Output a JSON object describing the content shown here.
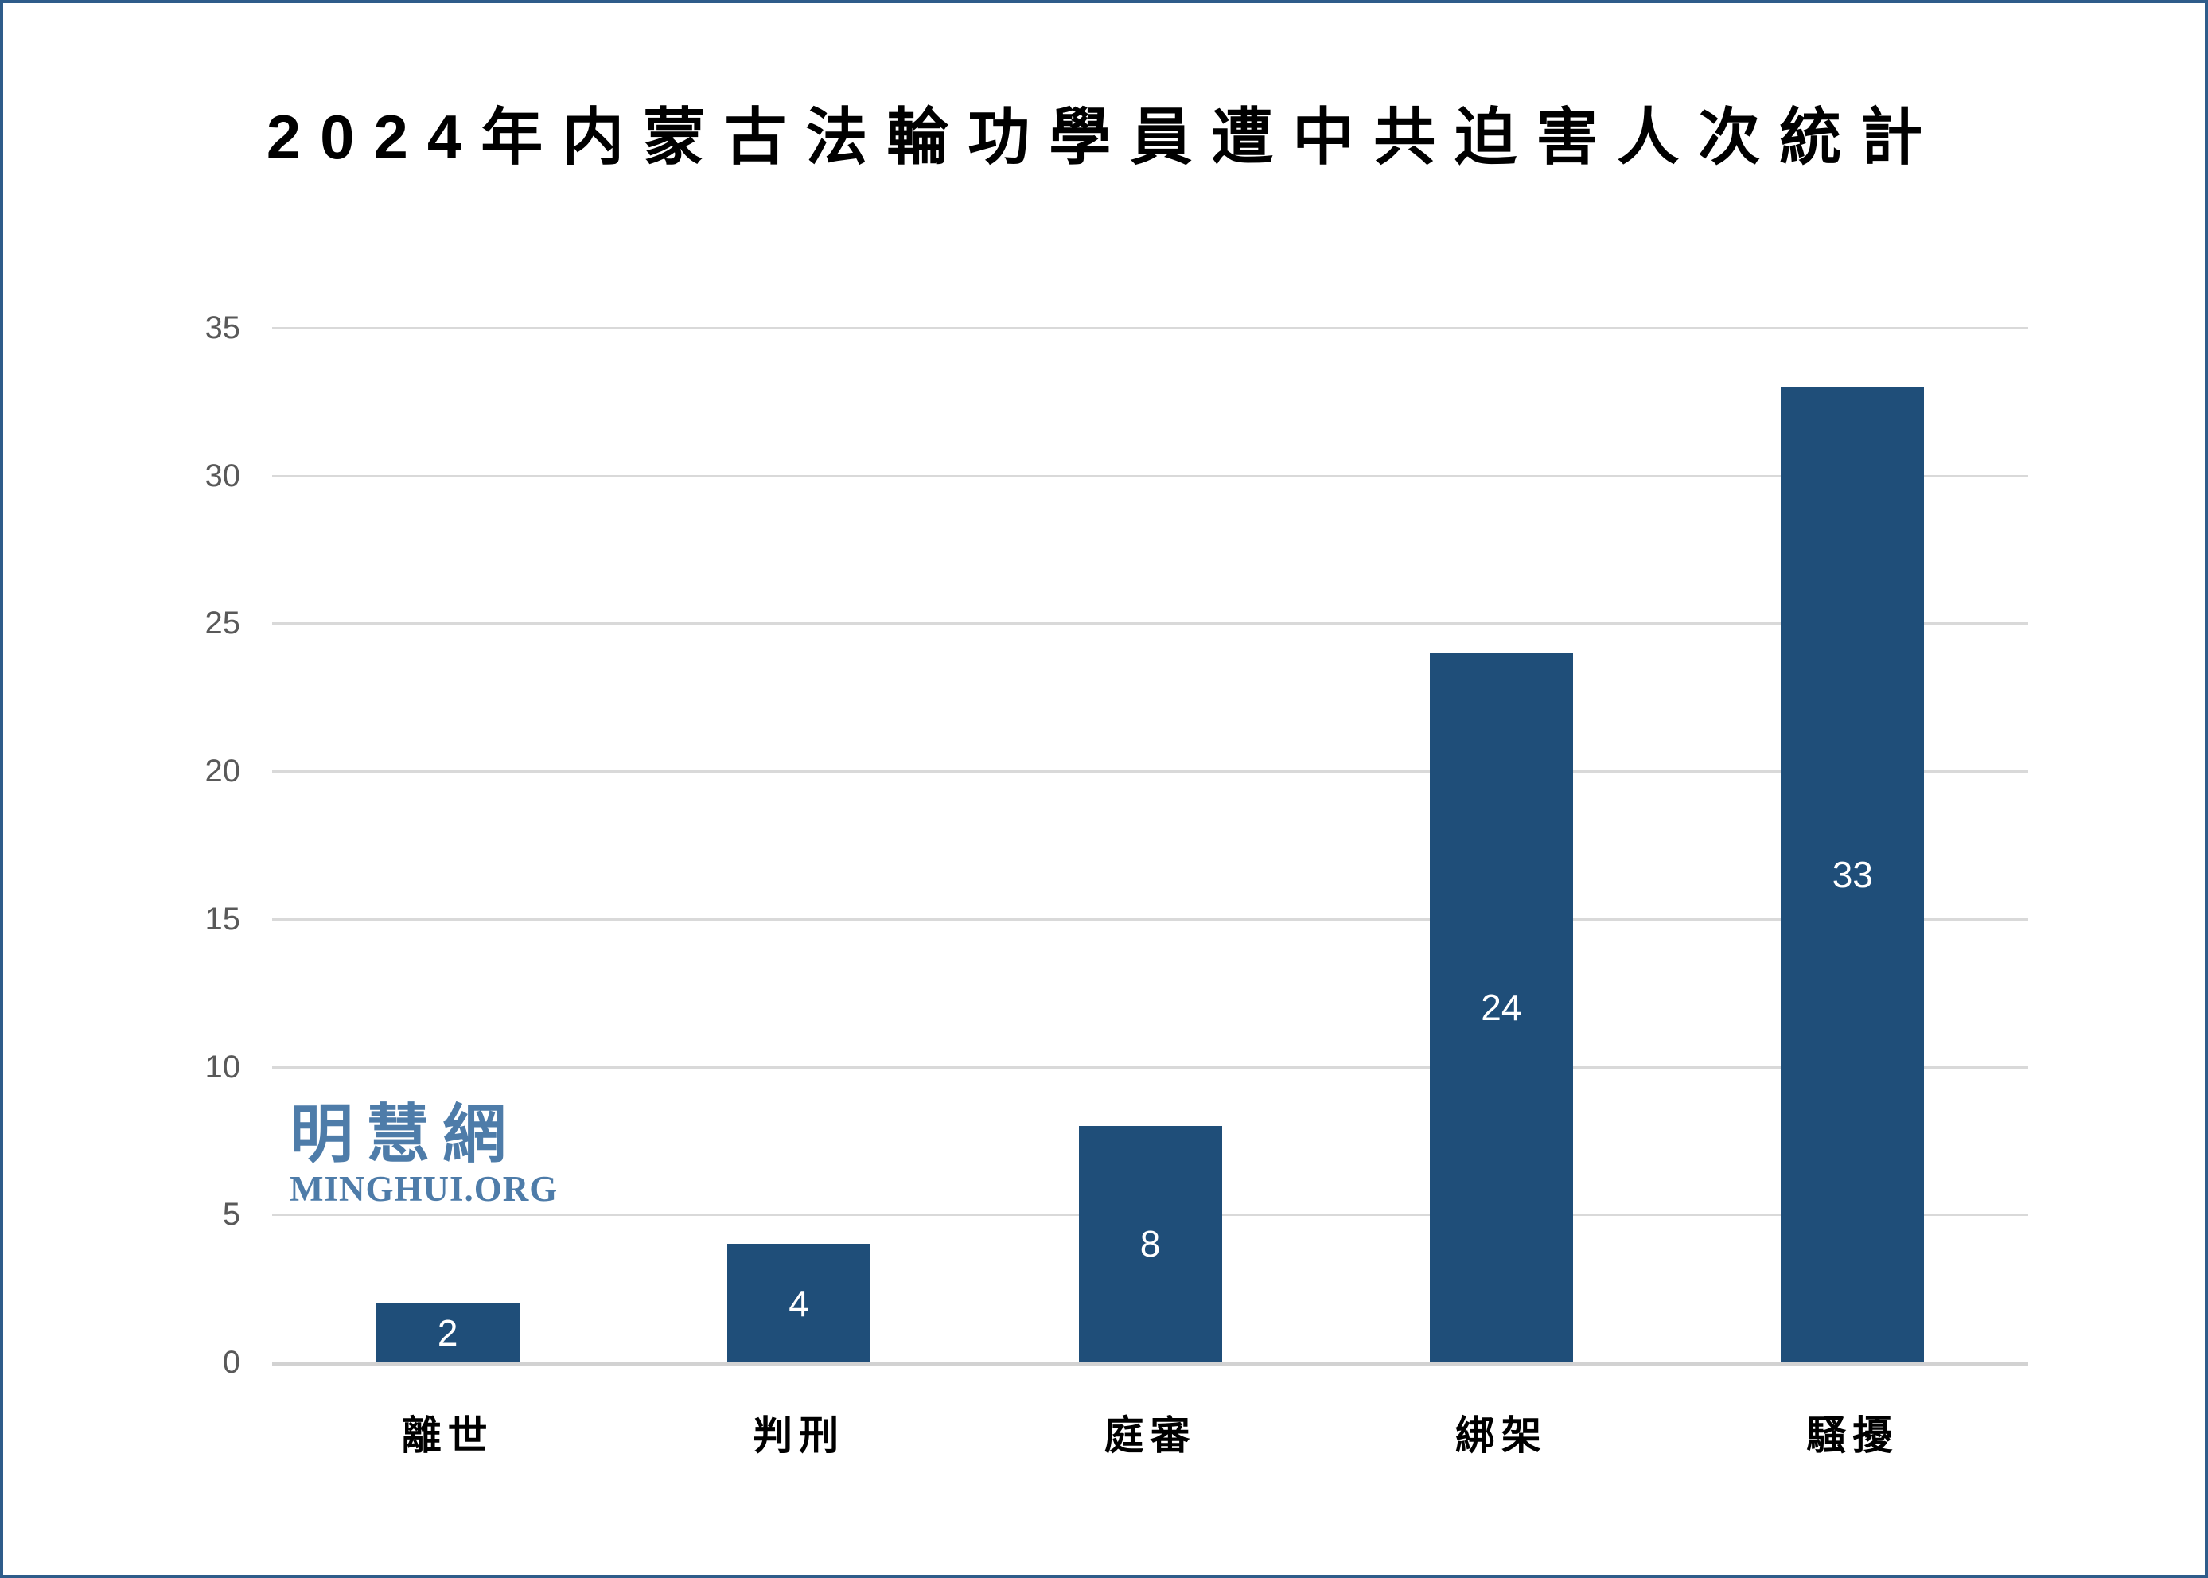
{
  "chart_data": {
    "type": "bar",
    "title": "2024年内蒙古法輪功學員遭中共迫害人次統計",
    "categories": [
      "離世",
      "判刑",
      "庭審",
      "綁架",
      "騷擾"
    ],
    "values": [
      2,
      4,
      8,
      24,
      33
    ],
    "xlabel": "",
    "ylabel": "",
    "ylim": [
      0,
      35
    ],
    "yticks": [
      0,
      5,
      10,
      15,
      20,
      25,
      30,
      35
    ],
    "grid": true,
    "legend": "none",
    "data_labels_position": "inside-center",
    "colors": {
      "bar": "#1f4e79",
      "bar_value_text": "#ffffff",
      "gridline": "#d9d9d9",
      "axis_line": "#d2d2d2",
      "tick_text": "#595959",
      "title_text": "#000000",
      "frame_border": "#2e5c8a",
      "background": "#ffffff"
    }
  },
  "watermark": {
    "chinese": "明慧網",
    "english": "MINGHUI.ORG",
    "color": "#4e7ca9"
  }
}
